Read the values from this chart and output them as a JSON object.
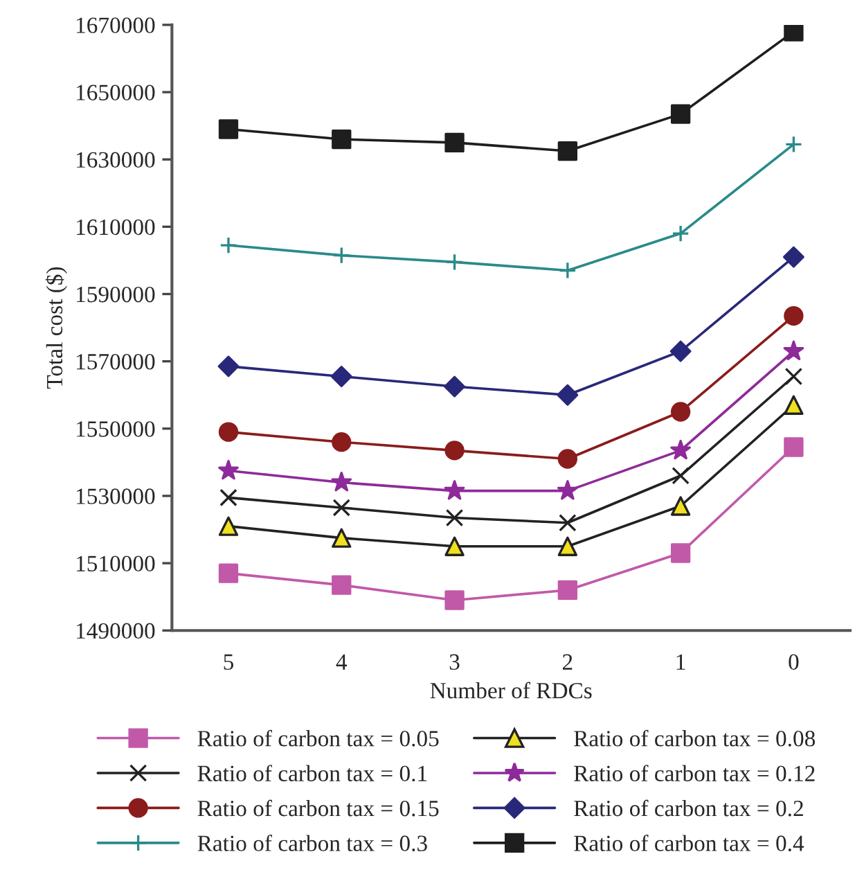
{
  "chart_data": {
    "type": "line",
    "xlabel": "Number of RDCs",
    "ylabel": "Total cost ($)",
    "categories": [
      "5",
      "4",
      "3",
      "2",
      "1",
      "0"
    ],
    "ylim": [
      1490000,
      1670000
    ],
    "yticks": [
      1490000,
      1510000,
      1530000,
      1550000,
      1570000,
      1590000,
      1610000,
      1630000,
      1650000,
      1670000
    ],
    "grid": false,
    "legend": "bottom",
    "series": [
      {
        "name": "Ratio of carbon tax = 0.05",
        "color": "#c159a8",
        "marker": "square",
        "values": [
          1507000,
          1503500,
          1499000,
          1502000,
          1513000,
          1544500
        ]
      },
      {
        "name": "Ratio of carbon tax = 0.08",
        "color": "#222222",
        "marker": "triangle",
        "colors": [
          "#f0e020",
          "#f0e020",
          "#f0e020",
          "#f0e020",
          "#f0e020",
          "#f0e020"
        ],
        "values": [
          1521000,
          1517500,
          1515000,
          1515000,
          1527000,
          1557000
        ]
      },
      {
        "name": "Ratio of carbon tax = 0.1",
        "color": "#222222",
        "marker": "cross",
        "values": [
          1529500,
          1526500,
          1523500,
          1522000,
          1536000,
          1565500
        ]
      },
      {
        "name": "Ratio of carbon tax = 0.12",
        "color": "#8e2a9a",
        "marker": "star",
        "values": [
          1537500,
          1534000,
          1531500,
          1531500,
          1543500,
          1573000
        ]
      },
      {
        "name": "Ratio of carbon tax = 0.15",
        "color": "#8b1c1c",
        "marker": "circle",
        "values": [
          1549000,
          1546000,
          1543500,
          1541000,
          1555000,
          1583500
        ]
      },
      {
        "name": "Ratio of carbon tax = 0.2",
        "color": "#28287a",
        "marker": "diamond",
        "values": [
          1568500,
          1565500,
          1562500,
          1560000,
          1573000,
          1601000
        ]
      },
      {
        "name": "Ratio of carbon tax = 0.3",
        "color": "#2a8a8a",
        "marker": "cross",
        "values": [
          1604500,
          1601500,
          1599500,
          1597000,
          1608000,
          1634500
        ]
      },
      {
        "name": "Ratio of carbon tax = 0.4",
        "color": "#1e1e1e",
        "marker": "square",
        "values": [
          1639000,
          1636000,
          1635000,
          1632500,
          1643500,
          1668000
        ]
      }
    ]
  }
}
